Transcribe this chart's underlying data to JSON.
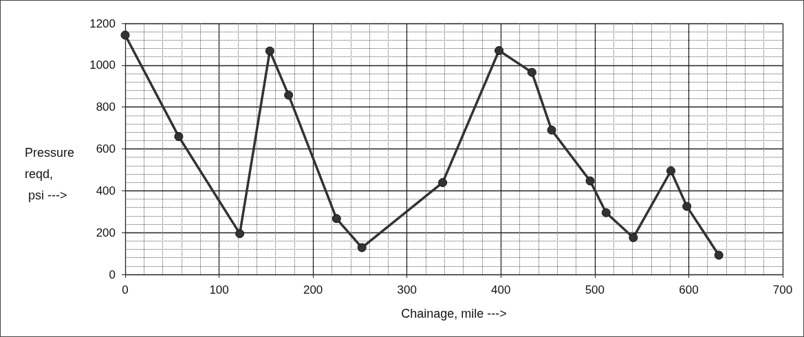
{
  "chart_data": {
    "type": "line",
    "xlabel": "Chainage, mile --->",
    "ylabel": "Pressure\nreqd,\n psi --->",
    "x": [
      0,
      57,
      122,
      154,
      174,
      225,
      252,
      338,
      398,
      433,
      454,
      495,
      512,
      541,
      581,
      598,
      632
    ],
    "series": [
      {
        "color": "#333333",
        "values": [
          1144,
          659,
          195,
          1068,
          857,
          267,
          128,
          439,
          1070,
          966,
          690,
          447,
          295,
          176,
          495,
          325,
          92
        ]
      }
    ],
    "xlim": [
      0,
      700
    ],
    "xticks": [
      0,
      100,
      200,
      300,
      400,
      500,
      600,
      700
    ],
    "ylim": [
      0,
      1200
    ],
    "yticks": [
      0,
      200,
      400,
      600,
      800,
      1000,
      1200
    ],
    "grid": true,
    "marker": "circle",
    "line_style": "solid"
  }
}
